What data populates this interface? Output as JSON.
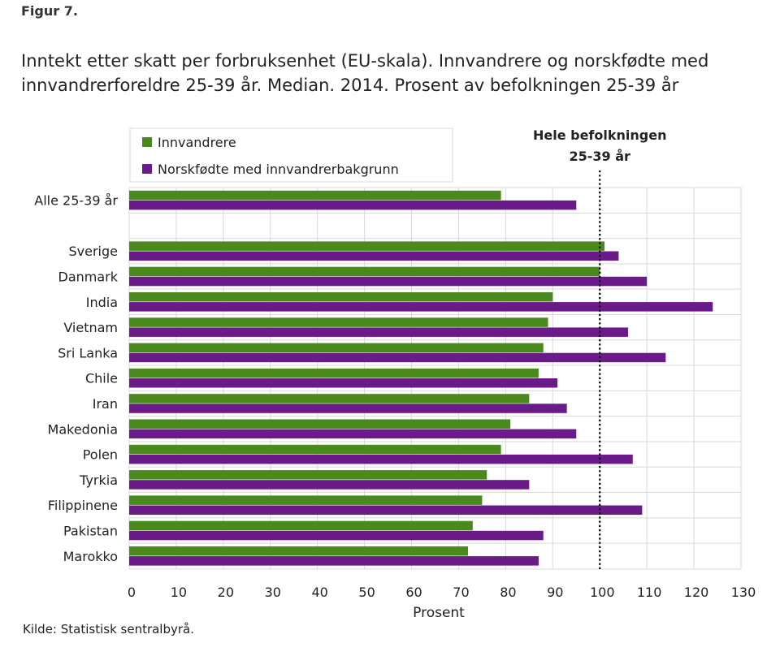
{
  "figure_label": "Figur 7.",
  "title": "Inntekt etter skatt per forbruksenhet (EU-skala). Innvandrere og norskfødte med innvandrerforeldre 25-39 år. Median. 2014. Prosent av befolkningen 25-39 år",
  "source": "Kilde: Statistisk sentralbyrå.",
  "chart_data": {
    "type": "bar",
    "orientation": "horizontal",
    "categories": [
      "Alle 25-39 år",
      "Sverige",
      "Danmark",
      "India",
      "Vietnam",
      "Sri Lanka",
      "Chile",
      "Iran",
      "Makedonia",
      "Polen",
      "Tyrkia",
      "Filippinene",
      "Pakistan",
      "Marokko"
    ],
    "series": [
      {
        "name": "Innvandrere",
        "color": "#4a8a1c",
        "values": [
          79,
          101,
          100,
          90,
          89,
          88,
          87,
          85,
          81,
          79,
          76,
          75,
          73,
          72
        ]
      },
      {
        "name": "Norskfødte med innvandrerbakgrunn",
        "color": "#6b1a8a",
        "values": [
          95,
          104,
          110,
          124,
          106,
          114,
          91,
          93,
          95,
          107,
          85,
          109,
          88,
          87
        ]
      }
    ],
    "xlabel": "Prosent",
    "xlim": [
      0,
      130
    ],
    "xticks": [
      0,
      10,
      20,
      30,
      40,
      50,
      60,
      70,
      80,
      90,
      100,
      110,
      120,
      130
    ],
    "grid": true,
    "legend": "top-left",
    "reference_line": {
      "value": 100,
      "label_line1": "Hele befolkningen",
      "label_line2": "25-39 år",
      "style": "dotted"
    }
  }
}
